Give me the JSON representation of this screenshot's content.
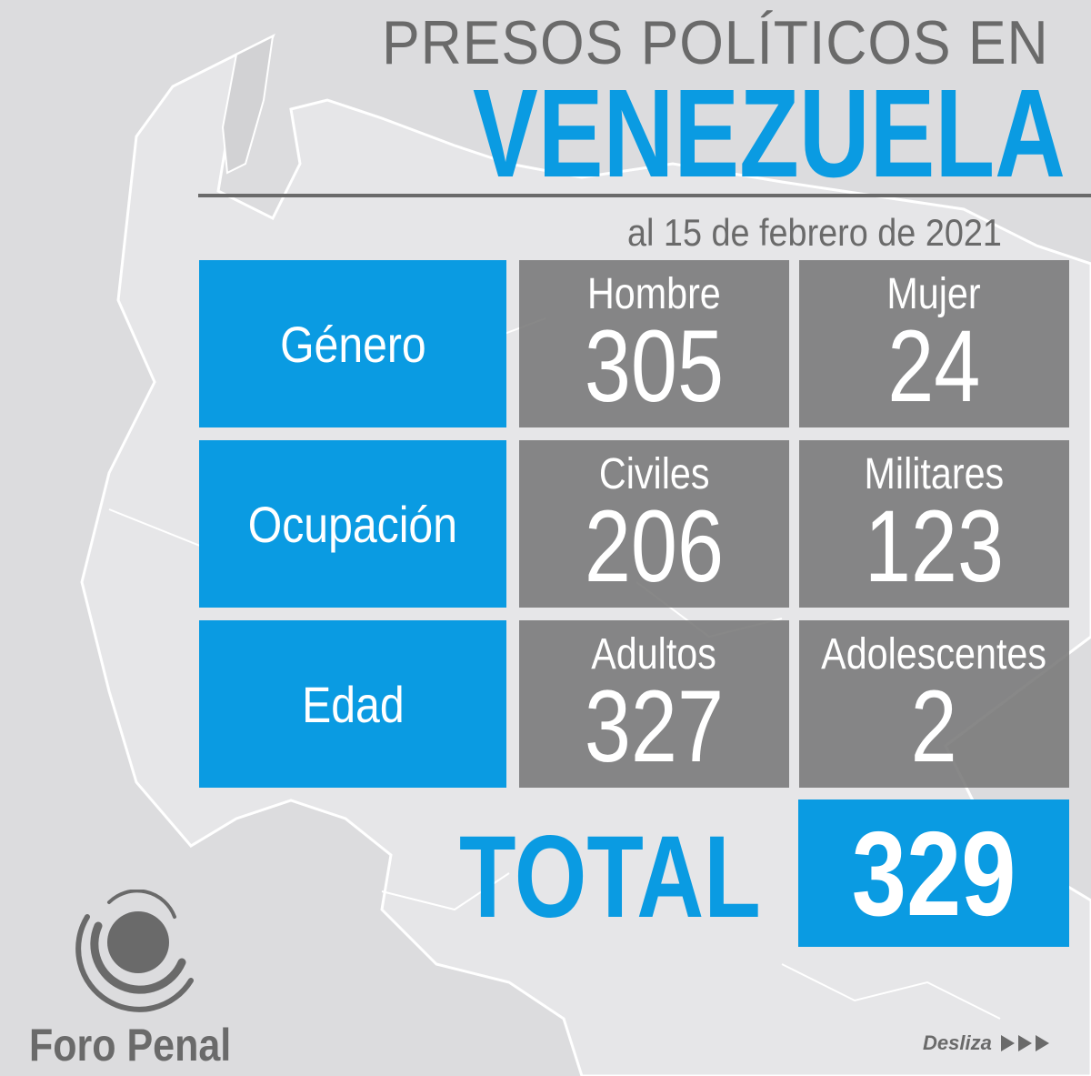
{
  "header": {
    "title_line1": "PRESOS POLÍTICOS EN",
    "title_line2": "VENEZUELA",
    "date": "al 15 de febrero de 2021"
  },
  "rows": [
    {
      "category": "Género",
      "cells": [
        {
          "label": "Hombre",
          "value": "305"
        },
        {
          "label": "Mujer",
          "value": "24"
        }
      ]
    },
    {
      "category": "Ocupación",
      "cells": [
        {
          "label": "Civiles",
          "value": "206"
        },
        {
          "label": "Militares",
          "value": "123"
        }
      ]
    },
    {
      "category": "Edad",
      "cells": [
        {
          "label": "Adultos",
          "value": "327"
        },
        {
          "label": "Adolescentes",
          "value": "2"
        }
      ]
    }
  ],
  "total": {
    "label": "TOTAL",
    "value": "329"
  },
  "footer": {
    "brand": "Foro Penal",
    "swipe_label": "Desliza",
    "swipe_icon": "triple-right-arrow-icon"
  },
  "colors": {
    "accent_blue": "#0a9be2",
    "cell_gray": "#787878",
    "text_gray": "#6a6a6a",
    "background": "#dcdcde"
  }
}
